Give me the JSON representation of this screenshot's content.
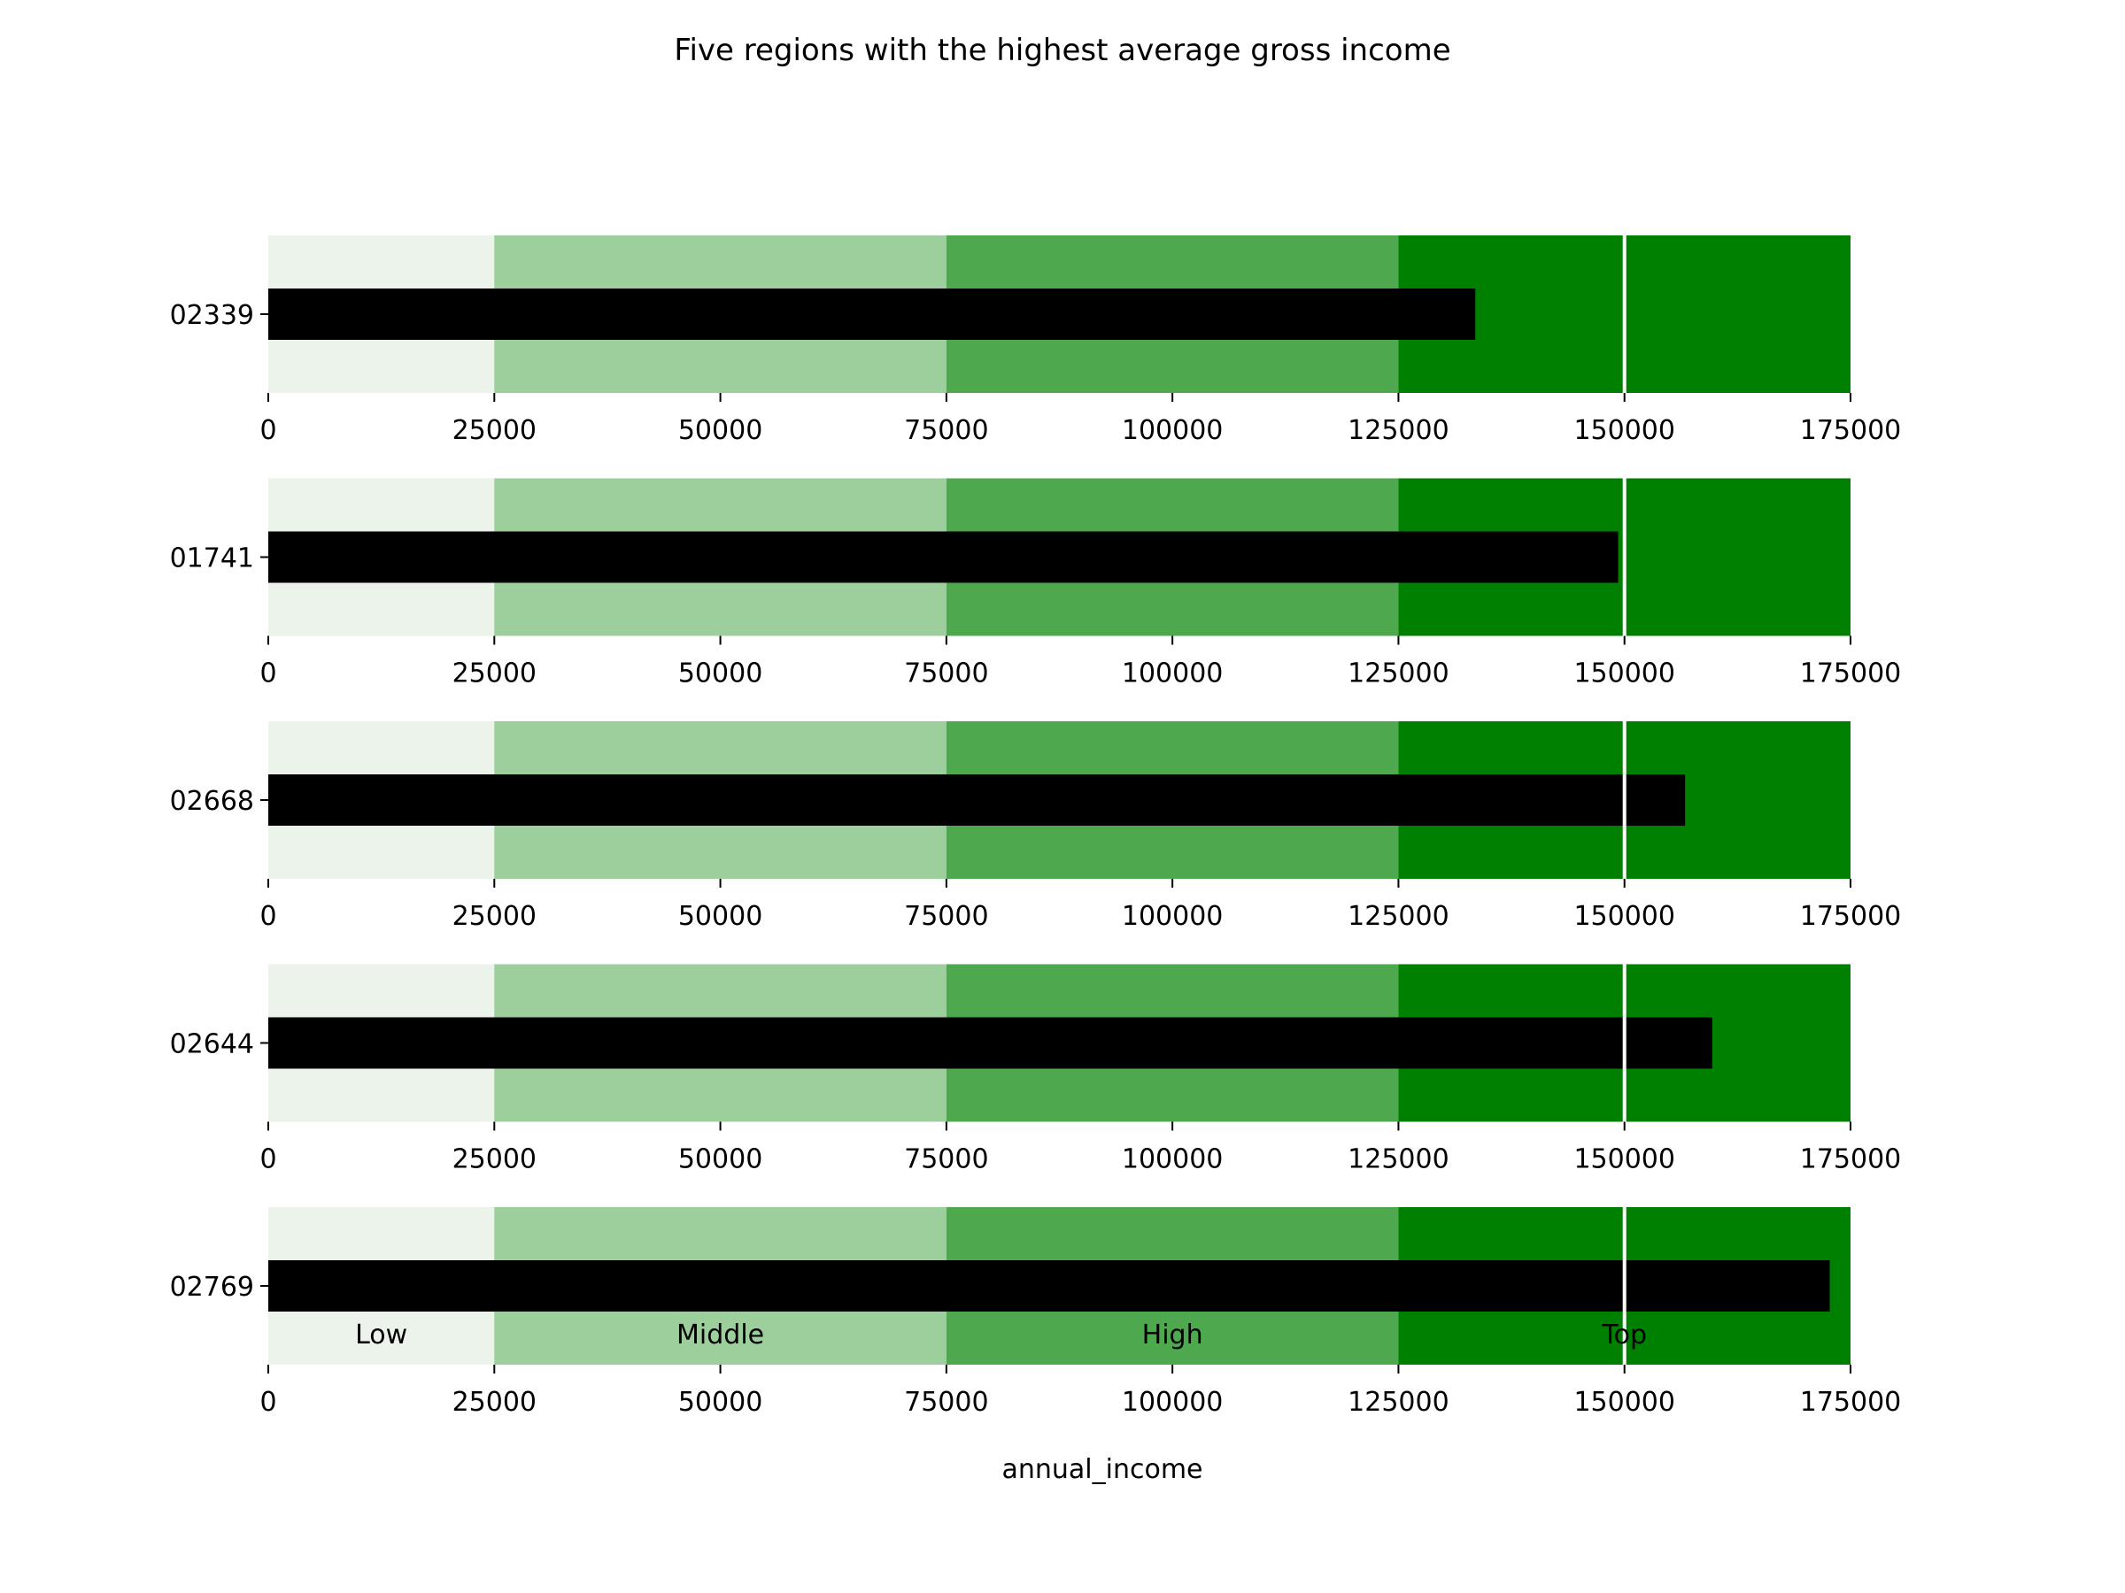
{
  "chart_data": {
    "type": "bar",
    "subtype": "bullet",
    "title": "Five regions with the highest average gross income",
    "xlabel": "annual_income",
    "ylabel": "",
    "xlim": [
      0,
      175000
    ],
    "xticks": [
      0,
      25000,
      50000,
      75000,
      100000,
      125000,
      150000,
      175000
    ],
    "categories": [
      "02339",
      "01741",
      "02668",
      "02644",
      "02769"
    ],
    "values": [
      133500,
      149300,
      156700,
      159700,
      172700
    ],
    "target": 150000,
    "bands": [
      {
        "label": "Low",
        "from": 0,
        "to": 25000,
        "color": "#ebf3ea"
      },
      {
        "label": "Middle",
        "from": 25000,
        "to": 75000,
        "color": "#9ccf9c"
      },
      {
        "label": "High",
        "from": 75000,
        "to": 125000,
        "color": "#4ea84e"
      },
      {
        "label": "Top",
        "from": 125000,
        "to": 175000,
        "color": "#008000"
      }
    ],
    "bar_color": "#000000",
    "target_color": "#ffffff",
    "grid": false,
    "legend": "none"
  }
}
